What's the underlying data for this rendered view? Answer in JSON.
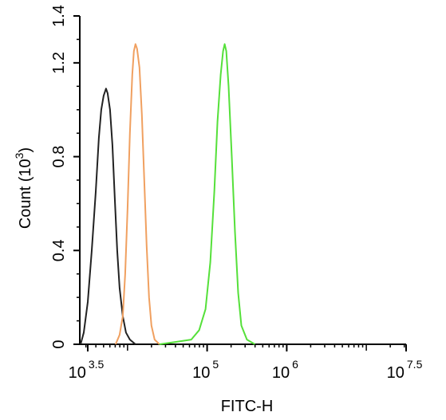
{
  "chart_data": {
    "type": "line",
    "title": "",
    "xlabel": "FITC-H",
    "ylabel": {
      "text": "Count  (10",
      "sup": "3",
      "close": ")"
    },
    "x_scale": "log10",
    "xlim_exponent": [
      3.4,
      7.5
    ],
    "ylim": [
      0,
      1.4
    ],
    "grid": false,
    "legend": "none",
    "y_ticks": [
      {
        "value": 0,
        "label": "0"
      },
      {
        "value": 0.4,
        "label": "0.4"
      },
      {
        "value": 0.8,
        "label": "0.8"
      },
      {
        "value": 1.2,
        "label": "1.2"
      },
      {
        "value": 1.4,
        "label": "1.4"
      }
    ],
    "x_ticks": [
      {
        "exponent": 3.5,
        "base": "10",
        "sup": "3.5"
      },
      {
        "exponent": 5,
        "base": "10",
        "sup": "5"
      },
      {
        "exponent": 6,
        "base": "10",
        "sup": "6"
      },
      {
        "exponent": 7.5,
        "base": "10",
        "sup": "7.5"
      }
    ],
    "series": [
      {
        "color": "#222222",
        "peak_exponent": 3.73,
        "peak_count": 1.09,
        "points": [
          [
            3.41,
            0.0
          ],
          [
            3.45,
            0.05
          ],
          [
            3.5,
            0.18
          ],
          [
            3.55,
            0.4
          ],
          [
            3.6,
            0.65
          ],
          [
            3.64,
            0.88
          ],
          [
            3.67,
            1.0
          ],
          [
            3.7,
            1.06
          ],
          [
            3.73,
            1.09
          ],
          [
            3.75,
            1.07
          ],
          [
            3.78,
            1.0
          ],
          [
            3.81,
            0.85
          ],
          [
            3.84,
            0.62
          ],
          [
            3.87,
            0.4
          ],
          [
            3.9,
            0.24
          ],
          [
            3.94,
            0.12
          ],
          [
            3.98,
            0.05
          ],
          [
            4.03,
            0.02
          ],
          [
            4.1,
            0.0
          ]
        ]
      },
      {
        "color": "#f0a060",
        "peak_exponent": 4.1,
        "peak_count": 1.28,
        "points": [
          [
            3.85,
            0.0
          ],
          [
            3.9,
            0.04
          ],
          [
            3.94,
            0.12
          ],
          [
            3.97,
            0.3
          ],
          [
            4.0,
            0.58
          ],
          [
            4.03,
            0.9
          ],
          [
            4.06,
            1.15
          ],
          [
            4.08,
            1.25
          ],
          [
            4.1,
            1.28
          ],
          [
            4.12,
            1.26
          ],
          [
            4.15,
            1.18
          ],
          [
            4.18,
            0.98
          ],
          [
            4.21,
            0.7
          ],
          [
            4.24,
            0.42
          ],
          [
            4.27,
            0.2
          ],
          [
            4.3,
            0.08
          ],
          [
            4.34,
            0.02
          ],
          [
            4.4,
            0.0
          ]
        ]
      },
      {
        "color": "#55e03a",
        "peak_exponent": 5.22,
        "peak_count": 1.28,
        "points": [
          [
            4.4,
            0.0
          ],
          [
            4.6,
            0.01
          ],
          [
            4.8,
            0.02
          ],
          [
            4.9,
            0.06
          ],
          [
            4.98,
            0.15
          ],
          [
            5.04,
            0.35
          ],
          [
            5.09,
            0.65
          ],
          [
            5.13,
            0.95
          ],
          [
            5.17,
            1.15
          ],
          [
            5.2,
            1.25
          ],
          [
            5.22,
            1.28
          ],
          [
            5.24,
            1.25
          ],
          [
            5.27,
            1.1
          ],
          [
            5.31,
            0.8
          ],
          [
            5.35,
            0.48
          ],
          [
            5.39,
            0.22
          ],
          [
            5.43,
            0.08
          ],
          [
            5.5,
            0.02
          ],
          [
            5.6,
            0.0
          ]
        ]
      }
    ]
  }
}
